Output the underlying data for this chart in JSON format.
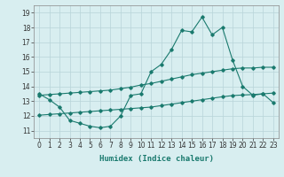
{
  "xlabel": "Humidex (Indice chaleur)",
  "x": [
    0,
    1,
    2,
    3,
    4,
    5,
    6,
    7,
    8,
    9,
    10,
    11,
    12,
    13,
    14,
    15,
    16,
    17,
    18,
    19,
    20,
    21,
    22,
    23
  ],
  "line1_y": [
    13.5,
    13.1,
    12.6,
    11.7,
    11.5,
    11.3,
    11.2,
    11.3,
    12.0,
    13.4,
    13.5,
    15.0,
    15.5,
    16.5,
    17.8,
    17.7,
    18.7,
    17.5,
    18.0,
    15.8,
    14.0,
    13.4,
    13.5,
    12.9
  ],
  "line2_y": [
    13.4,
    13.45,
    13.5,
    13.55,
    13.6,
    13.65,
    13.7,
    13.75,
    13.85,
    13.95,
    14.1,
    14.2,
    14.35,
    14.5,
    14.65,
    14.8,
    14.9,
    15.0,
    15.1,
    15.2,
    15.25,
    15.25,
    15.3,
    15.3
  ],
  "line3_y": [
    12.05,
    12.1,
    12.15,
    12.2,
    12.25,
    12.3,
    12.35,
    12.4,
    12.45,
    12.5,
    12.55,
    12.6,
    12.7,
    12.8,
    12.9,
    13.0,
    13.1,
    13.2,
    13.3,
    13.38,
    13.42,
    13.45,
    13.5,
    13.55
  ],
  "line_color": "#1a7a6e",
  "bg_color": "#d8eef0",
  "grid_color": "#b8d4d8",
  "ylim": [
    10.5,
    19.5
  ],
  "yticks": [
    11,
    12,
    13,
    14,
    15,
    16,
    17,
    18,
    19
  ],
  "xticks": [
    0,
    1,
    2,
    3,
    4,
    5,
    6,
    7,
    8,
    9,
    10,
    11,
    12,
    13,
    14,
    15,
    16,
    17,
    18,
    19,
    20,
    21,
    22,
    23
  ],
  "xlim": [
    -0.5,
    23.5
  ],
  "tick_fontsize": 5.5,
  "xlabel_fontsize": 6.5
}
